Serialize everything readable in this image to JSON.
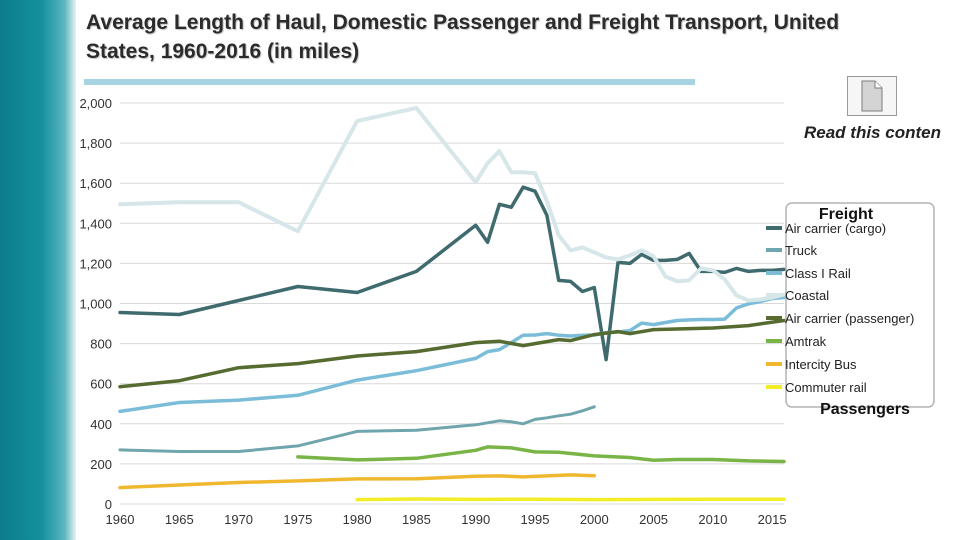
{
  "title": "Average Length of Haul, Domestic Passenger and Freight Transport, United States, 1960-2016 (in miles)",
  "read_link": "Read this conten",
  "icons": {
    "document": "document-icon"
  },
  "colors": {
    "air_cargo": "#3f6b6e",
    "truck": "#6fa5ad",
    "rail": "#7bbdd8",
    "coastal": "#d6e6e9",
    "air_pass": "#556b2f",
    "amtrak": "#79b447",
    "bus": "#efb82f",
    "commuter": "#f2ec29"
  },
  "chart_data": {
    "type": "line",
    "title": "Average Length of Haul, Domestic Passenger and Freight Transport, United States, 1960-2016 (in miles)",
    "xlabel": "",
    "ylabel": "",
    "xlim": [
      1960,
      2016
    ],
    "ylim": [
      0,
      2000
    ],
    "x_ticks": [
      1960,
      1965,
      1970,
      1975,
      1980,
      1985,
      1990,
      1995,
      2000,
      2005,
      2010,
      2015
    ],
    "y_ticks": [
      0,
      200,
      400,
      600,
      800,
      1000,
      1200,
      1400,
      1600,
      1800,
      2000
    ],
    "y_tick_labels": [
      "0",
      "200",
      "400",
      "600",
      "800",
      "1,000",
      "1,200",
      "1,400",
      "1,600",
      "1,800",
      "2,000"
    ],
    "grid": true,
    "legend_groups": [
      "Freight",
      "Passengers"
    ],
    "legend_placement": "right",
    "series": [
      {
        "name": "Air carrier (cargo)",
        "key": "air_cargo",
        "width": 3.5,
        "points": [
          [
            1960,
            955
          ],
          [
            1965,
            945
          ],
          [
            1970,
            1015
          ],
          [
            1975,
            1085
          ],
          [
            1980,
            1055
          ],
          [
            1985,
            1160
          ],
          [
            1990,
            1390
          ],
          [
            1991,
            1305
          ],
          [
            1992,
            1495
          ],
          [
            1993,
            1480
          ],
          [
            1994,
            1580
          ],
          [
            1995,
            1560
          ],
          [
            1996,
            1440
          ],
          [
            1997,
            1115
          ],
          [
            1998,
            1110
          ],
          [
            1999,
            1060
          ],
          [
            2000,
            1080
          ],
          [
            2001,
            720
          ],
          [
            2002,
            1205
          ],
          [
            2003,
            1200
          ],
          [
            2004,
            1245
          ],
          [
            2005,
            1215
          ],
          [
            2006,
            1215
          ],
          [
            2007,
            1220
          ],
          [
            2008,
            1250
          ],
          [
            2009,
            1160
          ],
          [
            2010,
            1160
          ],
          [
            2011,
            1155
          ],
          [
            2012,
            1175
          ],
          [
            2013,
            1160
          ],
          [
            2014,
            1165
          ],
          [
            2015,
            1165
          ],
          [
            2016,
            1170
          ]
        ]
      },
      {
        "name": "Truck",
        "key": "truck",
        "width": 3,
        "points": [
          [
            1960,
            270
          ],
          [
            1965,
            262
          ],
          [
            1970,
            262
          ],
          [
            1975,
            290
          ],
          [
            1980,
            362
          ],
          [
            1985,
            368
          ],
          [
            1990,
            395
          ],
          [
            1992,
            415
          ],
          [
            1993,
            410
          ],
          [
            1994,
            400
          ],
          [
            1995,
            422
          ],
          [
            1996,
            430
          ],
          [
            1997,
            440
          ],
          [
            1998,
            448
          ],
          [
            1999,
            465
          ],
          [
            2000,
            485
          ]
        ]
      },
      {
        "name": "Class I Rail",
        "key": "rail",
        "width": 3.5,
        "points": [
          [
            1960,
            462
          ],
          [
            1965,
            506
          ],
          [
            1970,
            518
          ],
          [
            1975,
            542
          ],
          [
            1980,
            618
          ],
          [
            1985,
            665
          ],
          [
            1990,
            726
          ],
          [
            1991,
            760
          ],
          [
            1992,
            770
          ],
          [
            1993,
            805
          ],
          [
            1994,
            842
          ],
          [
            1995,
            843
          ],
          [
            1996,
            850
          ],
          [
            1997,
            842
          ],
          [
            1998,
            838
          ],
          [
            1999,
            842
          ],
          [
            2000,
            843
          ],
          [
            2001,
            855
          ],
          [
            2002,
            858
          ],
          [
            2003,
            865
          ],
          [
            2004,
            902
          ],
          [
            2005,
            895
          ],
          [
            2006,
            905
          ],
          [
            2007,
            915
          ],
          [
            2008,
            918
          ],
          [
            2009,
            920
          ],
          [
            2010,
            920
          ],
          [
            2011,
            922
          ],
          [
            2012,
            978
          ],
          [
            2013,
            998
          ],
          [
            2014,
            1010
          ],
          [
            2015,
            1025
          ],
          [
            2016,
            1030
          ]
        ]
      },
      {
        "name": "Coastal",
        "key": "coastal",
        "width": 4,
        "points": [
          [
            1960,
            1495
          ],
          [
            1965,
            1505
          ],
          [
            1970,
            1505
          ],
          [
            1975,
            1360
          ],
          [
            1980,
            1910
          ],
          [
            1985,
            1975
          ],
          [
            1990,
            1605
          ],
          [
            1991,
            1700
          ],
          [
            1992,
            1760
          ],
          [
            1993,
            1655
          ],
          [
            1994,
            1655
          ],
          [
            1995,
            1650
          ],
          [
            1996,
            1510
          ],
          [
            1997,
            1340
          ],
          [
            1998,
            1265
          ],
          [
            1999,
            1280
          ],
          [
            2000,
            1255
          ],
          [
            2001,
            1230
          ],
          [
            2002,
            1220
          ],
          [
            2003,
            1240
          ],
          [
            2004,
            1265
          ],
          [
            2005,
            1235
          ],
          [
            2006,
            1135
          ],
          [
            2007,
            1110
          ],
          [
            2008,
            1115
          ],
          [
            2009,
            1175
          ],
          [
            2010,
            1165
          ],
          [
            2011,
            1120
          ],
          [
            2012,
            1040
          ],
          [
            2013,
            1015
          ],
          [
            2014,
            1020
          ],
          [
            2015,
            1030
          ],
          [
            2016,
            1045
          ]
        ]
      },
      {
        "name": "Air carrier (passenger)",
        "key": "air_pass",
        "width": 3.5,
        "points": [
          [
            1960,
            585
          ],
          [
            1965,
            615
          ],
          [
            1970,
            680
          ],
          [
            1975,
            700
          ],
          [
            1980,
            738
          ],
          [
            1985,
            760
          ],
          [
            1990,
            805
          ],
          [
            1992,
            812
          ],
          [
            1994,
            790
          ],
          [
            1995,
            800
          ],
          [
            1997,
            820
          ],
          [
            1998,
            815
          ],
          [
            2000,
            845
          ],
          [
            2002,
            860
          ],
          [
            2003,
            850
          ],
          [
            2005,
            870
          ],
          [
            2010,
            878
          ],
          [
            2013,
            890
          ],
          [
            2016,
            915
          ]
        ]
      },
      {
        "name": "Amtrak",
        "key": "amtrak",
        "width": 3.5,
        "points": [
          [
            1975,
            235
          ],
          [
            1980,
            220
          ],
          [
            1985,
            228
          ],
          [
            1990,
            268
          ],
          [
            1991,
            285
          ],
          [
            1993,
            280
          ],
          [
            1995,
            260
          ],
          [
            1997,
            258
          ],
          [
            2000,
            240
          ],
          [
            2003,
            232
          ],
          [
            2005,
            218
          ],
          [
            2007,
            222
          ],
          [
            2010,
            222
          ],
          [
            2013,
            215
          ],
          [
            2016,
            212
          ]
        ]
      },
      {
        "name": "Intercity Bus",
        "key": "bus",
        "width": 3.5,
        "points": [
          [
            1960,
            82
          ],
          [
            1965,
            95
          ],
          [
            1970,
            107
          ],
          [
            1975,
            115
          ],
          [
            1980,
            125
          ],
          [
            1985,
            126
          ],
          [
            1990,
            138
          ],
          [
            1992,
            140
          ],
          [
            1994,
            135
          ],
          [
            1996,
            140
          ],
          [
            1998,
            145
          ],
          [
            2000,
            141
          ]
        ]
      },
      {
        "name": "Commuter rail",
        "key": "commuter",
        "width": 3.5,
        "points": [
          [
            1980,
            22
          ],
          [
            1985,
            25
          ],
          [
            1990,
            23
          ],
          [
            1995,
            24
          ],
          [
            2000,
            22
          ],
          [
            2005,
            23
          ],
          [
            2010,
            24
          ],
          [
            2016,
            24
          ]
        ]
      }
    ]
  }
}
